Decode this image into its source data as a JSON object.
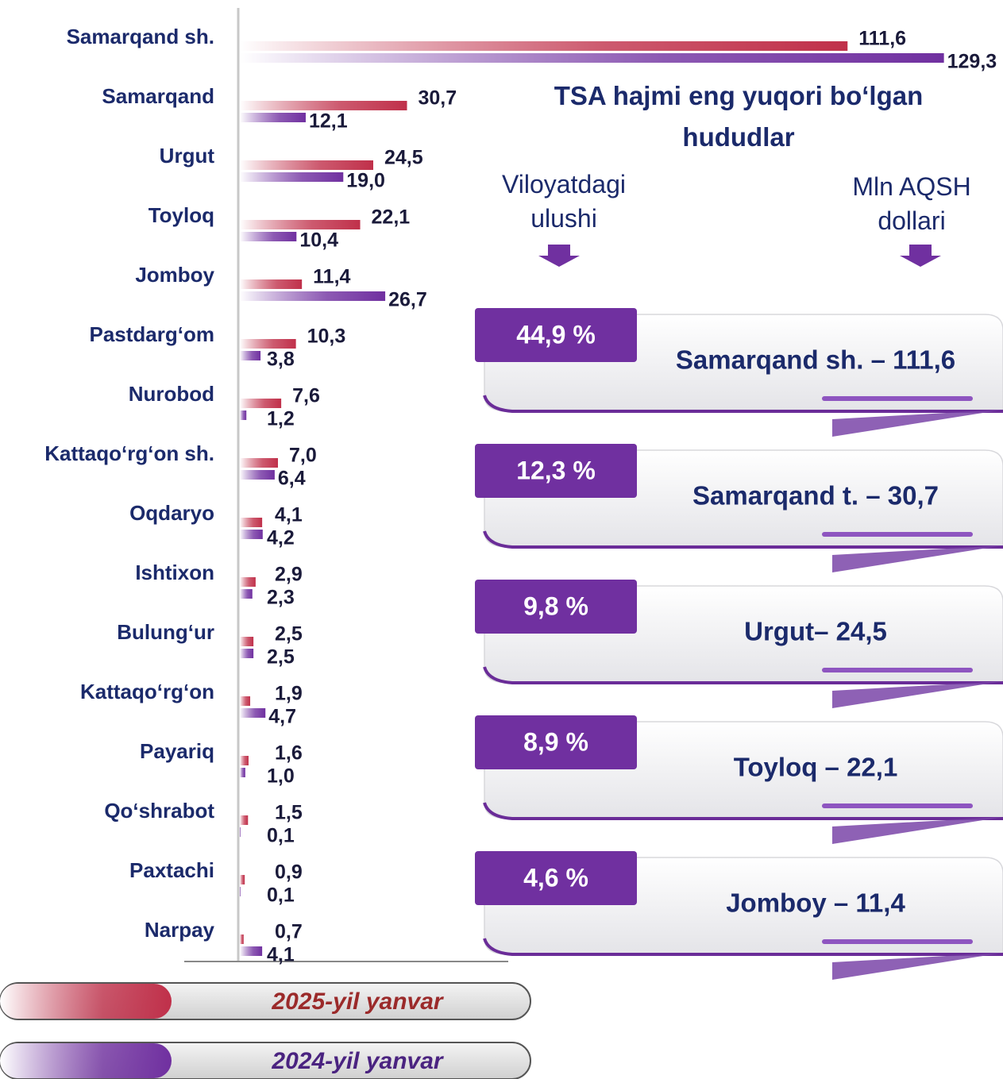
{
  "chart_data": {
    "type": "bar",
    "orientation": "horizontal",
    "title": "TSA hajmi eng yuqori bo‘lgan hududlar",
    "categories": [
      "Samarqand sh.",
      "Samarqand",
      "Urgut",
      "Toyloq",
      "Jomboy",
      "Pastdarg‘om",
      "Nurobod",
      "Kattaqo‘rg‘on sh.",
      "Oqdaryo",
      "Ishtixon",
      "Bulung‘ur",
      "Kattaqo‘rg‘on",
      "Payariq",
      "Qo‘shrabot",
      "Paxtachi",
      "Narpay"
    ],
    "series": [
      {
        "name": "2025-yil yanvar",
        "color": "#c0304a",
        "values": [
          111.6,
          30.7,
          24.5,
          22.1,
          11.4,
          10.3,
          7.6,
          7.0,
          4.1,
          2.9,
          2.5,
          1.9,
          1.6,
          1.5,
          0.9,
          0.7
        ],
        "value_labels": [
          "111,6",
          "30,7",
          "24,5",
          "22,1",
          "11,4",
          "10,3",
          "7,6",
          "7,0",
          "4,1",
          "2,9",
          "2,5",
          "1,9",
          "1,6",
          "1,5",
          "0,9",
          "0,7"
        ]
      },
      {
        "name": "2024-yil yanvar",
        "color": "#7030a0",
        "values": [
          129.3,
          12.1,
          19.0,
          10.4,
          26.7,
          3.8,
          1.2,
          6.4,
          4.2,
          2.3,
          2.5,
          4.7,
          1.0,
          0.1,
          0.1,
          4.1
        ],
        "value_labels": [
          "129,3",
          "12,1",
          "19,0",
          "10,4",
          "26,7",
          "3,8",
          "1,2",
          "6,4",
          "4,2",
          "2,3",
          "2,5",
          "4,7",
          "1,0",
          "0,1",
          "0,1",
          "4,1"
        ]
      }
    ],
    "xlim": [
      0,
      140
    ]
  },
  "columns": [
    "Viloyatdagi ulushi",
    "Mln AQSH dollari"
  ],
  "cards": [
    {
      "share": "44,9 %",
      "label": "Samarqand sh. – 111,6"
    },
    {
      "share": "12,3 %",
      "label": "Samarqand t. – 30,7"
    },
    {
      "share": "9,8 %",
      "label": "Urgut– 24,5"
    },
    {
      "share": "8,9 %",
      "label": "Toyloq – 22,1"
    },
    {
      "share": "4,6 %",
      "label": "Jomboy – 11,4"
    }
  ]
}
